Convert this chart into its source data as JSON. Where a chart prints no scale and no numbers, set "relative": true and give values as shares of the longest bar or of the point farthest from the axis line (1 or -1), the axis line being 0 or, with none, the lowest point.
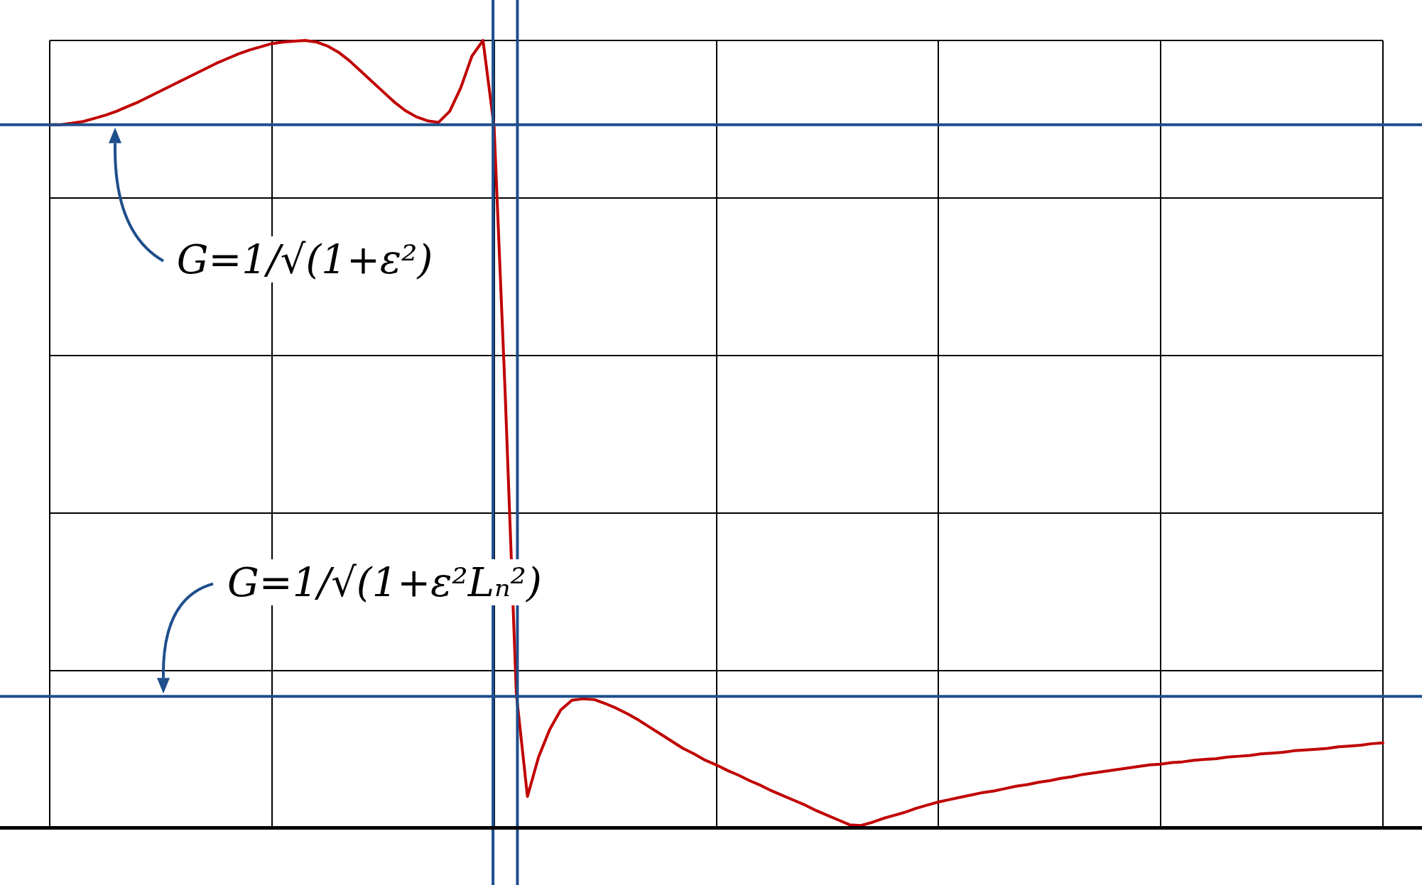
{
  "chart_data": {
    "type": "line",
    "relative": true,
    "grid": true,
    "legend": false,
    "marker": "none",
    "line_style": "solid",
    "categories": [
      null,
      null,
      null,
      null,
      null,
      null,
      null,
      null,
      null,
      null,
      null,
      null,
      null,
      null,
      null,
      null,
      null,
      null,
      null,
      null,
      null,
      null,
      null,
      null,
      null,
      null,
      null,
      null,
      null,
      null,
      null,
      null,
      null,
      null,
      null,
      null,
      null,
      null,
      null,
      null,
      null,
      null,
      null,
      null,
      null,
      null,
      null,
      null,
      null,
      null,
      null,
      null,
      null,
      null,
      null,
      null,
      null,
      null,
      null,
      null,
      null,
      null,
      null,
      null,
      null,
      null,
      null,
      null,
      null,
      null,
      null,
      null,
      null,
      null,
      null,
      null,
      null,
      null,
      null,
      null,
      null,
      null,
      null,
      null,
      null,
      null,
      null,
      null,
      null,
      null,
      null,
      null,
      null,
      null,
      null,
      null,
      null,
      null,
      null,
      null,
      null,
      null,
      null,
      null,
      null,
      null,
      null,
      null,
      null,
      null,
      null,
      null,
      null,
      null,
      null,
      null,
      null,
      null,
      null,
      null,
      null
    ],
    "series": [
      {
        "color": "#c00000",
        "values": [
          0.893,
          0.893,
          0.895,
          0.897,
          0.901,
          0.905,
          0.91,
          0.916,
          0.922,
          0.929,
          0.936,
          0.943,
          0.95,
          0.957,
          0.964,
          0.971,
          0.977,
          0.983,
          0.988,
          0.992,
          0.996,
          0.998,
          0.999,
          1.0,
          0.998,
          0.993,
          0.985,
          0.974,
          0.961,
          0.948,
          0.935,
          0.922,
          0.911,
          0.903,
          0.898,
          0.896,
          0.91,
          0.94,
          0.98,
          1.0,
          0.89,
          0.55,
          0.17,
          0.04,
          0.09,
          0.125,
          0.15,
          0.162,
          0.164,
          0.163,
          0.158,
          0.152,
          0.145,
          0.137,
          0.128,
          0.119,
          0.11,
          0.101,
          0.094,
          0.086,
          0.08,
          0.073,
          0.067,
          0.06,
          0.054,
          0.047,
          0.041,
          0.035,
          0.029,
          0.022,
          0.016,
          0.01,
          0.004,
          0.003,
          0.007,
          0.012,
          0.016,
          0.02,
          0.025,
          0.029,
          0.033,
          0.036,
          0.039,
          0.042,
          0.045,
          0.047,
          0.05,
          0.053,
          0.055,
          0.058,
          0.06,
          0.063,
          0.065,
          0.068,
          0.07,
          0.072,
          0.074,
          0.076,
          0.078,
          0.08,
          0.081,
          0.083,
          0.084,
          0.086,
          0.087,
          0.088,
          0.09,
          0.091,
          0.092,
          0.094,
          0.095,
          0.096,
          0.098,
          0.099,
          0.1,
          0.101,
          0.103,
          0.104,
          0.105,
          0.107,
          0.108
        ]
      }
    ],
    "ref_lines": [
      {
        "axis": "y",
        "value": 0.893,
        "color": "#1f4e8c"
      },
      {
        "axis": "y",
        "value": 0.167,
        "color": "#1f4e8c"
      }
    ],
    "annotations": [
      "G=1/√(1+ε²)",
      "G=1/√(1+ε²Lₙ²)"
    ]
  }
}
